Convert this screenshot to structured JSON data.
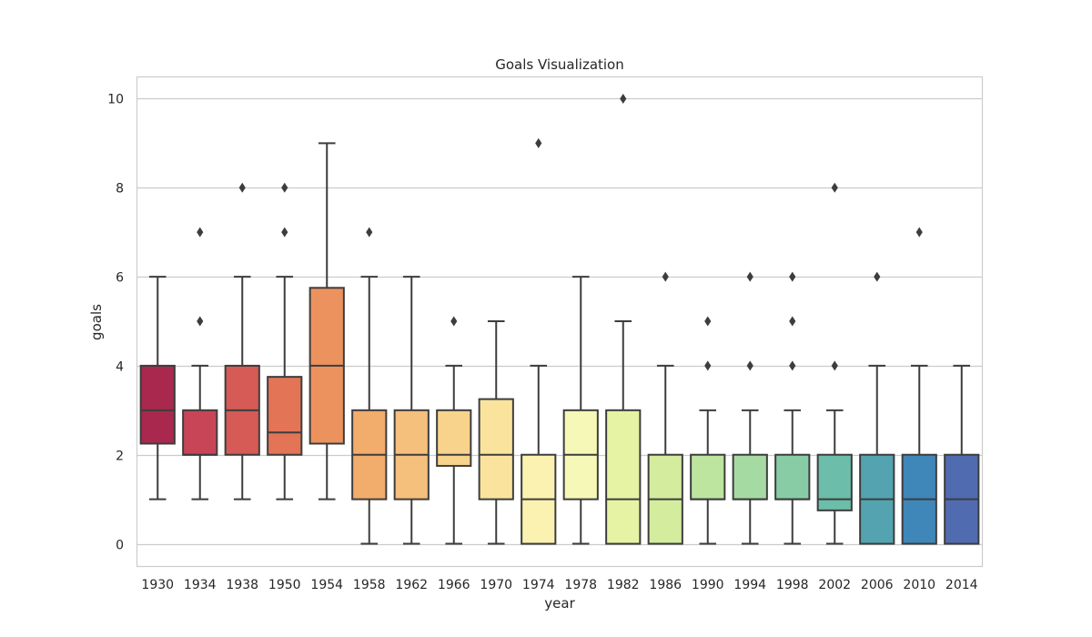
{
  "chart_data": {
    "type": "box",
    "title": "Goals Visualization",
    "xlabel": "year",
    "ylabel": "goals",
    "ylim": [
      -0.5,
      10.5
    ],
    "yticks": [
      0,
      2,
      4,
      6,
      8,
      10
    ],
    "grid": "horizontal",
    "categories": [
      "1930",
      "1934",
      "1938",
      "1950",
      "1954",
      "1958",
      "1962",
      "1966",
      "1970",
      "1974",
      "1978",
      "1982",
      "1986",
      "1990",
      "1994",
      "1998",
      "2002",
      "2006",
      "2010",
      "2014"
    ],
    "colors": [
      "#a9294e",
      "#c84557",
      "#d65a55",
      "#e37455",
      "#ec925e",
      "#f2ac6c",
      "#f5bf7c",
      "#f8d38c",
      "#fae49d",
      "#fbf2b1",
      "#f5f8b7",
      "#e6f3a5",
      "#d4ec9e",
      "#bde5a0",
      "#a5dba3",
      "#88cca5",
      "#6cbda9",
      "#53a4b0",
      "#3f86b9",
      "#506bb0"
    ],
    "boxes": [
      {
        "category": "1930",
        "q1": 2.25,
        "median": 3,
        "q3": 4,
        "whisker_low": 1,
        "whisker_high": 6,
        "outliers": []
      },
      {
        "category": "1934",
        "q1": 2,
        "median": 2,
        "q3": 3,
        "whisker_low": 1,
        "whisker_high": 4,
        "outliers": [
          5,
          7
        ]
      },
      {
        "category": "1938",
        "q1": 2,
        "median": 3,
        "q3": 4,
        "whisker_low": 1,
        "whisker_high": 6,
        "outliers": [
          8
        ]
      },
      {
        "category": "1950",
        "q1": 2,
        "median": 2.5,
        "q3": 3.75,
        "whisker_low": 1,
        "whisker_high": 6,
        "outliers": [
          7,
          8
        ]
      },
      {
        "category": "1954",
        "q1": 2.25,
        "median": 4,
        "q3": 5.75,
        "whisker_low": 1,
        "whisker_high": 9,
        "outliers": []
      },
      {
        "category": "1958",
        "q1": 1,
        "median": 2,
        "q3": 3,
        "whisker_low": 0,
        "whisker_high": 6,
        "outliers": [
          7
        ]
      },
      {
        "category": "1962",
        "q1": 1,
        "median": 2,
        "q3": 3,
        "whisker_low": 0,
        "whisker_high": 6,
        "outliers": []
      },
      {
        "category": "1966",
        "q1": 1.75,
        "median": 2,
        "q3": 3,
        "whisker_low": 0,
        "whisker_high": 4,
        "outliers": [
          5
        ]
      },
      {
        "category": "1970",
        "q1": 1,
        "median": 2,
        "q3": 3.25,
        "whisker_low": 0,
        "whisker_high": 5,
        "outliers": []
      },
      {
        "category": "1974",
        "q1": 0,
        "median": 1,
        "q3": 2,
        "whisker_low": 0,
        "whisker_high": 4,
        "outliers": [
          9
        ]
      },
      {
        "category": "1978",
        "q1": 1,
        "median": 2,
        "q3": 3,
        "whisker_low": 0,
        "whisker_high": 6,
        "outliers": []
      },
      {
        "category": "1982",
        "q1": 0,
        "median": 1,
        "q3": 3,
        "whisker_low": 0,
        "whisker_high": 5,
        "outliers": [
          10
        ]
      },
      {
        "category": "1986",
        "q1": 0,
        "median": 1,
        "q3": 2,
        "whisker_low": 0,
        "whisker_high": 4,
        "outliers": [
          6
        ]
      },
      {
        "category": "1990",
        "q1": 1,
        "median": 1,
        "q3": 2,
        "whisker_low": 0,
        "whisker_high": 3,
        "outliers": [
          4,
          5
        ]
      },
      {
        "category": "1994",
        "q1": 1,
        "median": 1,
        "q3": 2,
        "whisker_low": 0,
        "whisker_high": 3,
        "outliers": [
          4,
          6
        ]
      },
      {
        "category": "1998",
        "q1": 1,
        "median": 1,
        "q3": 2,
        "whisker_low": 0,
        "whisker_high": 3,
        "outliers": [
          4,
          5,
          6
        ]
      },
      {
        "category": "2002",
        "q1": 0.75,
        "median": 1,
        "q3": 2,
        "whisker_low": 0,
        "whisker_high": 3,
        "outliers": [
          4,
          8
        ]
      },
      {
        "category": "2006",
        "q1": 0,
        "median": 1,
        "q3": 2,
        "whisker_low": 0,
        "whisker_high": 4,
        "outliers": [
          6
        ]
      },
      {
        "category": "2010",
        "q1": 0,
        "median": 1,
        "q3": 2,
        "whisker_low": 0,
        "whisker_high": 4,
        "outliers": [
          7
        ]
      },
      {
        "category": "2014",
        "q1": 0,
        "median": 1,
        "q3": 2,
        "whisker_low": 0,
        "whisker_high": 4,
        "outliers": []
      }
    ]
  }
}
